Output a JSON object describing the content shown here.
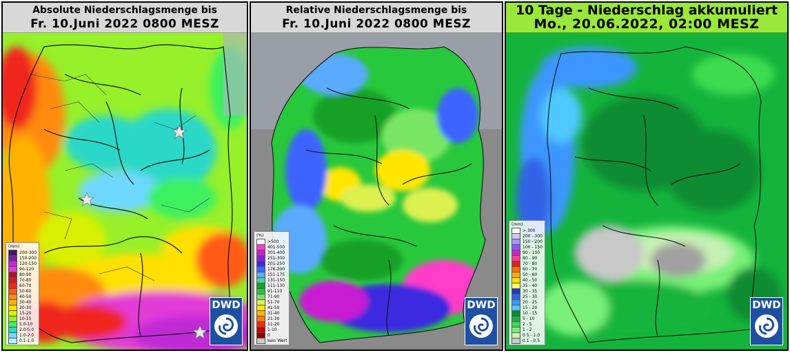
{
  "panels": [
    {
      "title_line1": "Absolute Niederschlagsmenge bis",
      "title_line2": "Fr. 10.Juni 2022 0800 MESZ",
      "legend_unit": "(mm)",
      "legend": [
        {
          "label": "200-300",
          "color": "#4b0f6e"
        },
        {
          "label": "150-200",
          "color": "#7a1fa0"
        },
        {
          "label": "120-150",
          "color": "#c02ad6"
        },
        {
          "label": "90-120",
          "color": "#e23ad6"
        },
        {
          "label": "80-90",
          "color": "#b0122c"
        },
        {
          "label": "70-80",
          "color": "#d41a1a"
        },
        {
          "label": "60-70",
          "color": "#f0281c"
        },
        {
          "label": "50-60",
          "color": "#ff5a14"
        },
        {
          "label": "40-50",
          "color": "#ff8a10"
        },
        {
          "label": "30-40",
          "color": "#ffb300"
        },
        {
          "label": "20-30",
          "color": "#ffe000"
        },
        {
          "label": "15-20",
          "color": "#d8f000"
        },
        {
          "label": "10-15",
          "color": "#96f02a"
        },
        {
          "label": "5.0-10",
          "color": "#3cf060"
        },
        {
          "label": "2.0-5.0",
          "color": "#2ad8c8"
        },
        {
          "label": "1.0-2.0",
          "color": "#6ed8ff"
        },
        {
          "label": "0.1-1.0",
          "color": "#b8ecff"
        }
      ],
      "logo_text": "DWD",
      "marker_icon": "star-icon"
    },
    {
      "title_line1": "Relative Niederschlagsmenge bis",
      "title_line2": "Fr. 10.Juni 2022 0800 MESZ",
      "legend_unit": "(%)",
      "legend": [
        {
          "label": ">500",
          "color": "#ffffff"
        },
        {
          "label": "401-500",
          "color": "#ff3cc8"
        },
        {
          "label": "301-400",
          "color": "#c81ed2"
        },
        {
          "label": "251-300",
          "color": "#8a1ed2"
        },
        {
          "label": "201-250",
          "color": "#3a2ae0"
        },
        {
          "label": "176-200",
          "color": "#3c64ff"
        },
        {
          "label": "151-175",
          "color": "#5aaaff"
        },
        {
          "label": "131-150",
          "color": "#46d2a0"
        },
        {
          "label": "111-130",
          "color": "#14a028"
        },
        {
          "label": "91-110",
          "color": "#28c83c"
        },
        {
          "label": "71-90",
          "color": "#78e664"
        },
        {
          "label": "51-70",
          "color": "#dcf050"
        },
        {
          "label": "41-50",
          "color": "#ffe600"
        },
        {
          "label": "31-40",
          "color": "#ffb400"
        },
        {
          "label": "21-30",
          "color": "#ff7800"
        },
        {
          "label": "11-20",
          "color": "#ff2800"
        },
        {
          "label": "1-10",
          "color": "#c80000"
        },
        {
          "label": "0",
          "color": "#960000"
        },
        {
          "label": "kein Wert",
          "color": "#cccccc"
        }
      ],
      "logo_text": "DWD"
    },
    {
      "title_line1": "10 Tage - Niederschlag akkumuliert",
      "title_line2": "Mo., 20.06.2022, 02:00 MESZ",
      "legend_unit": "(mm)",
      "legend": [
        {
          "label": "> 300",
          "color": "#ffffff"
        },
        {
          "label": "200 - 300",
          "color": "#d0c8ff"
        },
        {
          "label": "150 - 200",
          "color": "#a896ff"
        },
        {
          "label": "100 - 150",
          "color": "#8a5aff"
        },
        {
          "label": "90 - 100",
          "color": "#d21ecd"
        },
        {
          "label": "80 - 90",
          "color": "#ff3c96"
        },
        {
          "label": "70 - 80",
          "color": "#e61e1e"
        },
        {
          "label": "60 - 70",
          "color": "#ff6e00"
        },
        {
          "label": "50 - 60",
          "color": "#ffaa00"
        },
        {
          "label": "40 - 50",
          "color": "#ffdc00"
        },
        {
          "label": "35 - 40",
          "color": "#ffff64"
        },
        {
          "label": "30 - 35",
          "color": "#1e3cc8"
        },
        {
          "label": "25 - 30",
          "color": "#3264e6"
        },
        {
          "label": "20 - 25",
          "color": "#3c96ff"
        },
        {
          "label": "15 - 20",
          "color": "#50c8ff"
        },
        {
          "label": "10 - 15",
          "color": "#0a8c32"
        },
        {
          "label": "5 - 10",
          "color": "#14b43c"
        },
        {
          "label": "2 - 5",
          "color": "#3cdc50"
        },
        {
          "label": "1 - 2",
          "color": "#78f078"
        },
        {
          "label": "0.5 - 1.0",
          "color": "#c8f0b4"
        },
        {
          "label": "0.1 - 0.5",
          "color": "#c8c8c8"
        }
      ],
      "logo_text": "DWD"
    }
  ]
}
